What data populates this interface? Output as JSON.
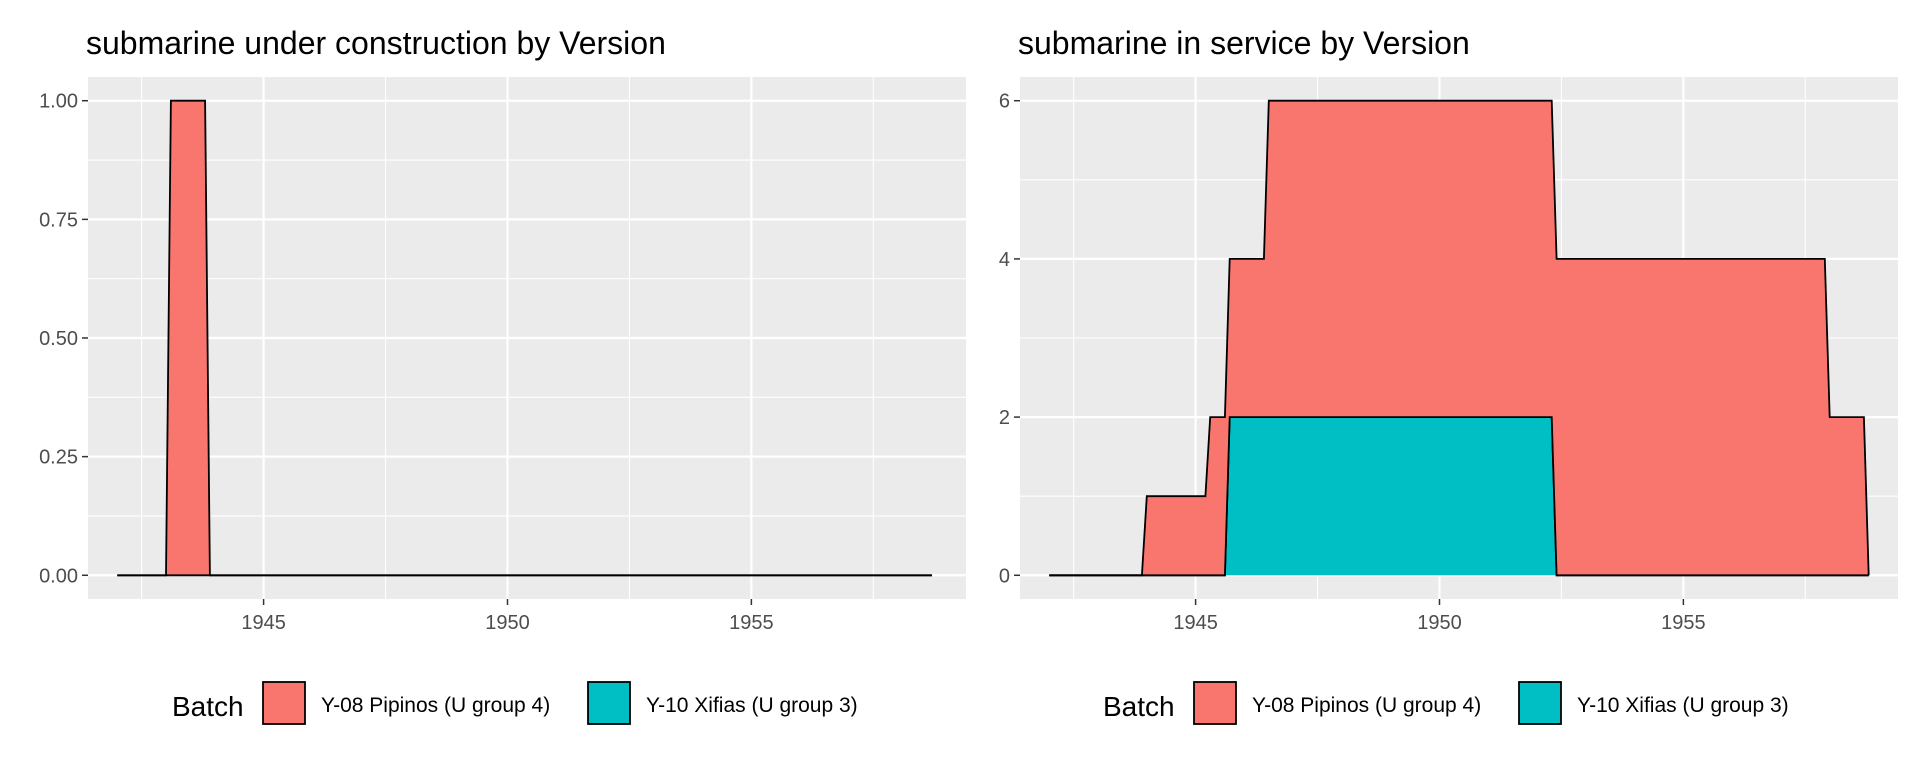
{
  "chart_data": [
    {
      "type": "area",
      "stacked": true,
      "title": "submarine under construction by Version",
      "xlabel": "",
      "ylabel": "",
      "xlim": [
        1941.4,
        1959.4
      ],
      "ylim": [
        -0.05,
        1.05
      ],
      "x_ticks": [
        1945,
        1950,
        1955
      ],
      "y_ticks": [
        0,
        0.25,
        0.5,
        0.75,
        1.0
      ],
      "y_tick_labels": [
        "0.00",
        "0.25",
        "0.50",
        "0.75",
        "1.00"
      ],
      "grid": true,
      "series": [
        {
          "name": "Y-08 Pipinos (U group 4)",
          "color": "#F8766D",
          "points": [
            [
              1942.0,
              0
            ],
            [
              1943.0,
              0
            ],
            [
              1943.1,
              1
            ],
            [
              1943.8,
              1
            ],
            [
              1943.9,
              0
            ],
            [
              1958.7,
              0
            ]
          ]
        },
        {
          "name": "Y-10 Xifias (U group 3)",
          "color": "#00BFC4",
          "points": [
            [
              1942.0,
              0
            ],
            [
              1958.7,
              0
            ]
          ]
        }
      ],
      "legend": {
        "title": "Batch",
        "position": "bottom"
      }
    },
    {
      "type": "area",
      "stacked": true,
      "title": "submarine in service by Version",
      "xlabel": "",
      "ylabel": "",
      "xlim": [
        1941.4,
        1959.4
      ],
      "ylim": [
        -0.3,
        6.3
      ],
      "x_ticks": [
        1945,
        1950,
        1955
      ],
      "y_ticks": [
        0,
        2,
        4,
        6
      ],
      "y_tick_labels": [
        "0",
        "2",
        "4",
        "6"
      ],
      "grid": true,
      "series": [
        {
          "name": "Y-10 Xifias (U group 3)",
          "color": "#00BFC4",
          "points": [
            [
              1942.0,
              0
            ],
            [
              1945.6,
              0
            ],
            [
              1945.7,
              2
            ],
            [
              1952.3,
              2
            ],
            [
              1952.4,
              0
            ],
            [
              1958.8,
              0
            ]
          ]
        },
        {
          "name": "Y-08 Pipinos (U group 4)",
          "color": "#F8766D",
          "points": [
            [
              1942.0,
              0
            ],
            [
              1943.9,
              0
            ],
            [
              1944.0,
              1
            ],
            [
              1945.2,
              1
            ],
            [
              1945.3,
              2
            ],
            [
              1945.6,
              2
            ],
            [
              1945.7,
              2
            ],
            [
              1946.4,
              2
            ],
            [
              1946.5,
              4
            ],
            [
              1952.3,
              4
            ],
            [
              1952.4,
              4
            ],
            [
              1957.9,
              4
            ],
            [
              1958.0,
              2
            ],
            [
              1958.7,
              2
            ],
            [
              1958.8,
              0
            ]
          ]
        }
      ],
      "legend": {
        "title": "Batch",
        "position": "bottom"
      }
    }
  ],
  "legend": {
    "title": "Batch",
    "items": [
      {
        "label": "Y-08 Pipinos (U group 4)",
        "color": "#F8766D"
      },
      {
        "label": "Y-10 Xifias (U group 3)",
        "color": "#00BFC4"
      }
    ]
  }
}
